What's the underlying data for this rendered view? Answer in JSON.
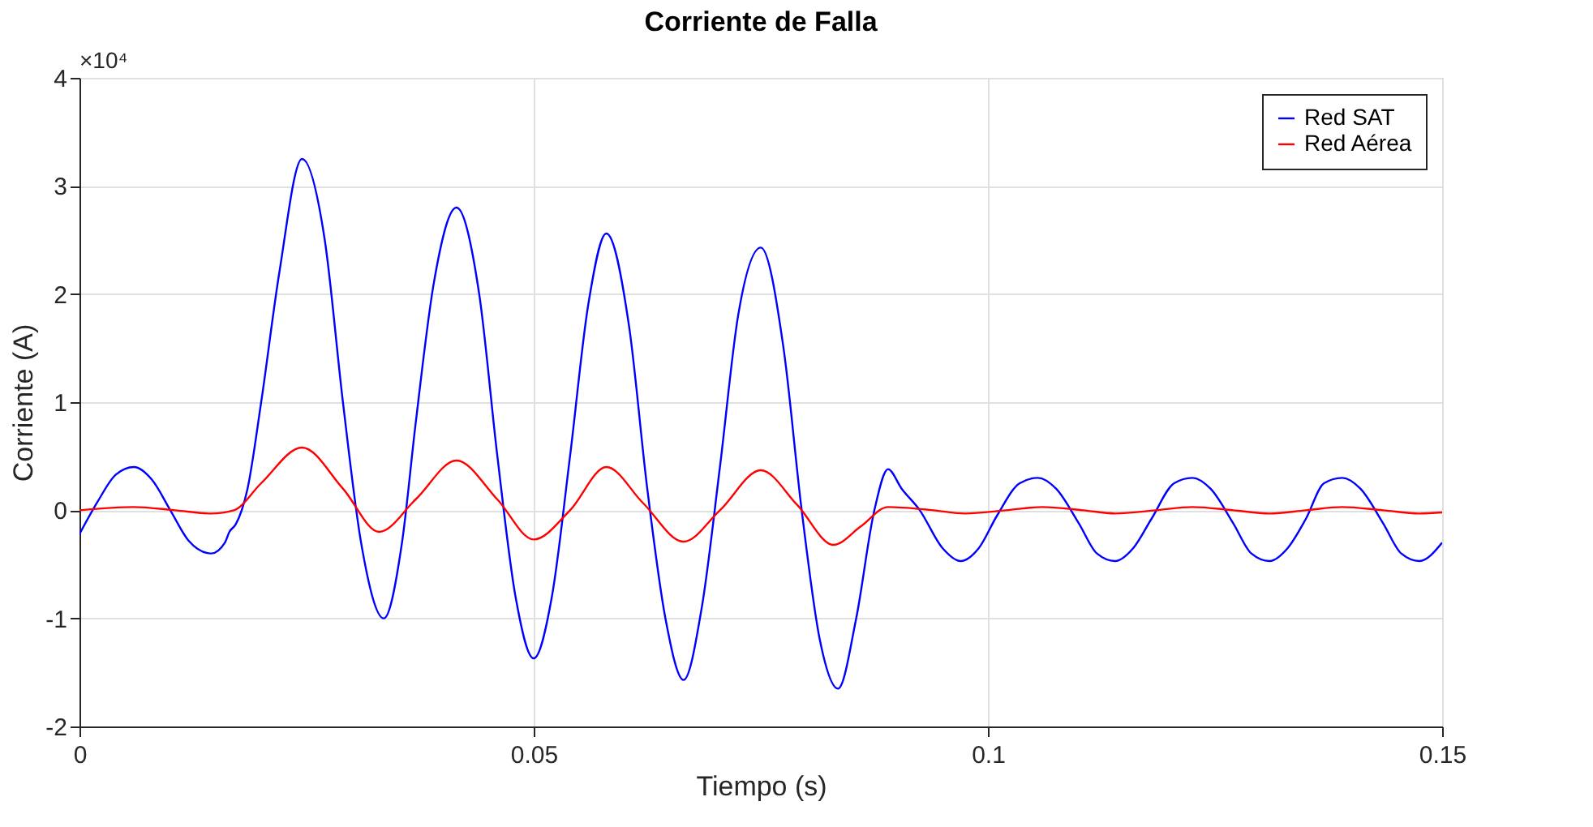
{
  "chart_data": {
    "type": "line",
    "title": "Corriente de Falla",
    "xlabel": "Tiempo (s)",
    "ylabel": "Corriente (A)",
    "annotations": [
      "×10⁴"
    ],
    "xlim": [
      0,
      0.15
    ],
    "xticks": [
      0,
      0.05,
      0.1,
      0.15
    ],
    "ylim": [
      -2,
      4
    ],
    "yticks": [
      -2,
      -1,
      0,
      1,
      2,
      3,
      4
    ],
    "grid": true,
    "legend": "top right",
    "marker": "none",
    "line_style": "solid",
    "series": [
      {
        "name": "Red SAT",
        "color": "#0000ff",
        "x": [
          0,
          0.002,
          0.004,
          0.006,
          0.008,
          0.01,
          0.012,
          0.0145,
          0.016,
          0.0165,
          0.0172,
          0.0185,
          0.02,
          0.022,
          0.0245,
          0.027,
          0.029,
          0.031,
          0.0335,
          0.0355,
          0.037,
          0.039,
          0.0415,
          0.044,
          0.046,
          0.048,
          0.05,
          0.052,
          0.054,
          0.056,
          0.058,
          0.0605,
          0.0625,
          0.0645,
          0.0665,
          0.0685,
          0.0705,
          0.0725,
          0.075,
          0.0775,
          0.0795,
          0.0815,
          0.0835,
          0.0855,
          0.0875,
          0.089,
          0.0905,
          0.0925,
          0.095,
          0.097,
          0.099,
          0.101,
          0.1035,
          0.1055,
          0.1075,
          0.11,
          0.112,
          0.114,
          0.116,
          0.118,
          0.1205,
          0.1225,
          0.1245,
          0.127,
          0.129,
          0.131,
          0.133,
          0.135,
          0.137,
          0.139,
          0.141,
          0.1435,
          0.1455,
          0.1475,
          0.15
        ],
        "values": [
          -0.22,
          0.08,
          0.33,
          0.4,
          0.28,
          0,
          -0.28,
          -0.4,
          -0.3,
          -0.2,
          -0.13,
          0.2,
          1.0,
          2.2,
          3.25,
          2.5,
          1.0,
          -0.3,
          -1.0,
          -0.3,
          0.8,
          2.1,
          2.8,
          2.0,
          0.5,
          -0.8,
          -1.37,
          -0.8,
          0.5,
          1.9,
          2.56,
          1.7,
          0.2,
          -1.0,
          -1.57,
          -0.9,
          0.4,
          1.8,
          2.43,
          1.5,
          0,
          -1.2,
          -1.65,
          -1.0,
          0,
          0.38,
          0.2,
          0,
          -0.35,
          -0.47,
          -0.35,
          -0.05,
          0.25,
          0.3,
          0.2,
          -0.12,
          -0.4,
          -0.47,
          -0.35,
          -0.08,
          0.25,
          0.3,
          0.2,
          -0.12,
          -0.4,
          -0.47,
          -0.35,
          -0.08,
          0.25,
          0.3,
          0.2,
          -0.12,
          -0.4,
          -0.47,
          -0.3
        ]
      },
      {
        "name": "Red Aérea",
        "color": "#ff0000",
        "x": [
          0,
          0.006,
          0.0105,
          0.0145,
          0.017,
          0.02,
          0.0245,
          0.029,
          0.033,
          0.037,
          0.0415,
          0.046,
          0.05,
          0.054,
          0.058,
          0.062,
          0.0665,
          0.0705,
          0.075,
          0.079,
          0.083,
          0.086,
          0.089,
          0.094,
          0.0975,
          0.102,
          0.106,
          0.1105,
          0.114,
          0.1185,
          0.1225,
          0.127,
          0.131,
          0.135,
          0.139,
          0.1435,
          0.1475,
          0.15
        ],
        "values": [
          0,
          0.03,
          0,
          -0.03,
          0,
          0.25,
          0.58,
          0.2,
          -0.2,
          0.1,
          0.46,
          0.1,
          -0.27,
          0,
          0.4,
          0.07,
          -0.29,
          0,
          0.37,
          0.05,
          -0.32,
          -0.15,
          0.03,
          0,
          -0.03,
          0,
          0.03,
          0,
          -0.03,
          0,
          0.03,
          0,
          -0.03,
          0,
          0.03,
          0,
          -0.03,
          -0.02
        ]
      }
    ]
  }
}
